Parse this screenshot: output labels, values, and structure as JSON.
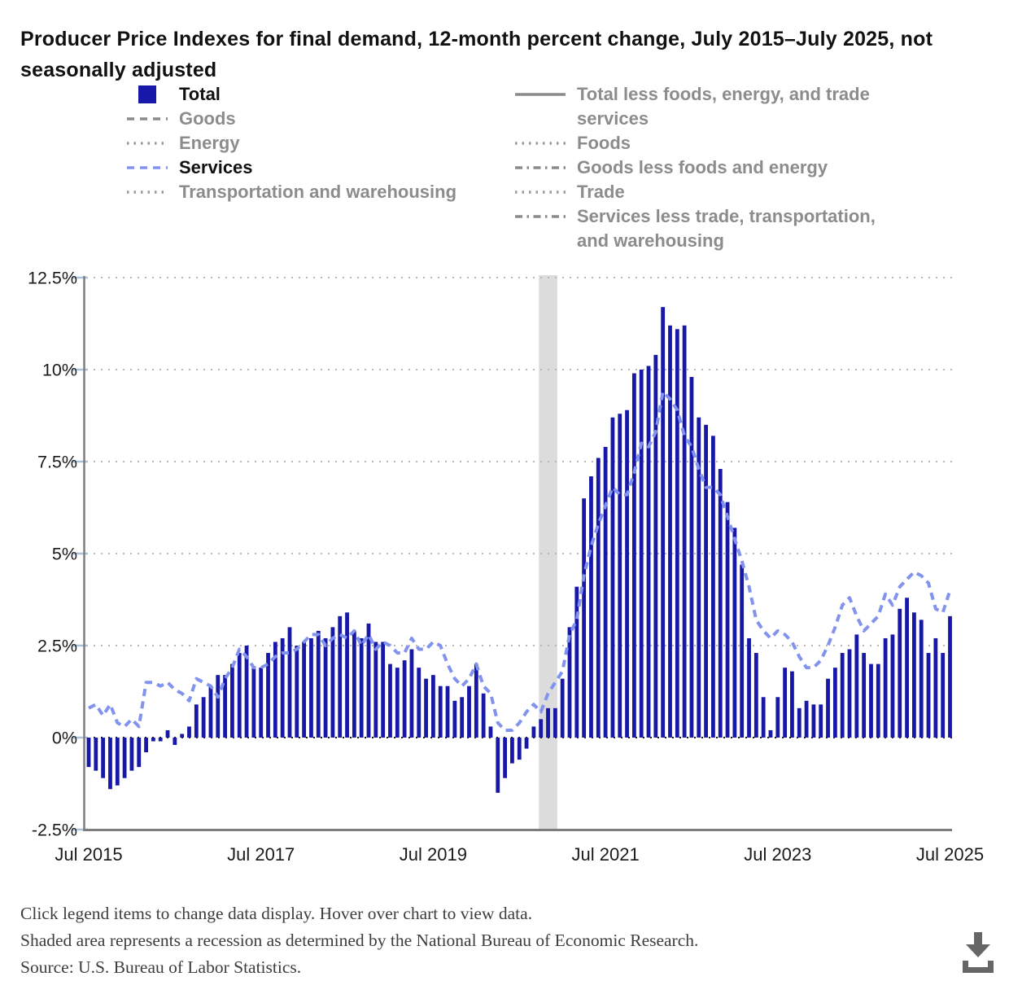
{
  "title": "Producer Price Indexes for final demand, 12-month percent change, July 2015–July 2025, not seasonally adjusted",
  "legend": {
    "columns": [
      [
        {
          "label": "Total",
          "marker": "square",
          "color": "#1717a8",
          "active": true
        },
        {
          "label": "Goods",
          "marker": "dashed",
          "color": "#8a8a8a",
          "active": false
        },
        {
          "label": "Energy",
          "marker": "dotted",
          "color": "#9a9a9a",
          "active": false
        },
        {
          "label": "Services",
          "marker": "dashed",
          "color": "#8293ee",
          "active": true
        },
        {
          "label": "Transportation and warehousing",
          "marker": "dotted",
          "color": "#9a9a9a",
          "active": false
        }
      ],
      [
        {
          "label": "Total less foods, energy, and trade services",
          "marker": "solid",
          "color": "#8a8a8a",
          "active": false
        },
        {
          "label": "Foods",
          "marker": "dotted",
          "color": "#9a9a9a",
          "active": false
        },
        {
          "label": "Goods less foods and energy",
          "marker": "dashdot",
          "color": "#8a8a8a",
          "active": false
        },
        {
          "label": "Trade",
          "marker": "dotted",
          "color": "#9a9a9a",
          "active": false
        },
        {
          "label": "Services less trade, transportation, and warehousing",
          "marker": "dashdot",
          "color": "#8a8a8a",
          "active": false
        }
      ]
    ]
  },
  "chart_data": {
    "type": "bar",
    "title": "Producer Price Indexes for final demand, 12-month percent change",
    "x_unit": "month",
    "x_start": "Jul 2015",
    "x_end": "Jul 2025",
    "n_points": 121,
    "grid": "dotted-horizontal",
    "ylim": [
      -2.5,
      12.5
    ],
    "y_ticks": [
      {
        "label": "12.5%",
        "value": 12.5
      },
      {
        "label": "10%",
        "value": 10
      },
      {
        "label": "7.5%",
        "value": 7.5
      },
      {
        "label": "5%",
        "value": 5
      },
      {
        "label": "2.5%",
        "value": 2.5
      },
      {
        "label": "0%",
        "value": 0
      },
      {
        "label": "-2.5%",
        "value": -2.5
      }
    ],
    "x_ticks": [
      {
        "label": "Jul 2015",
        "index": 0
      },
      {
        "label": "Jul 2017",
        "index": 24
      },
      {
        "label": "Jul 2019",
        "index": 48
      },
      {
        "label": "Jul 2021",
        "index": 72
      },
      {
        "label": "Jul 2023",
        "index": 96
      },
      {
        "label": "Jul 2025",
        "index": 120
      }
    ],
    "recession_band": {
      "from_index": 63,
      "to_index": 65,
      "color": "#dcdcdc"
    },
    "series": [
      {
        "name": "Total",
        "type": "bar",
        "color": "#1717a8",
        "values": [
          -0.8,
          -0.9,
          -1.1,
          -1.4,
          -1.3,
          -1.1,
          -0.9,
          -0.8,
          -0.4,
          -0.1,
          -0.1,
          0.2,
          -0.2,
          0.1,
          0.3,
          0.9,
          1.1,
          1.4,
          1.7,
          1.7,
          2.0,
          2.3,
          2.5,
          1.9,
          1.9,
          2.3,
          2.6,
          2.7,
          3.0,
          2.5,
          2.6,
          2.7,
          2.9,
          2.7,
          3.0,
          3.3,
          3.4,
          2.9,
          2.7,
          3.1,
          2.6,
          2.6,
          2.0,
          1.9,
          2.1,
          2.4,
          1.9,
          1.6,
          1.7,
          1.4,
          1.4,
          1.0,
          1.1,
          1.4,
          2.0,
          1.2,
          0.3,
          -1.5,
          -1.1,
          -0.7,
          -0.6,
          -0.3,
          0.3,
          0.5,
          0.8,
          0.8,
          1.6,
          3.0,
          4.1,
          6.5,
          7.1,
          7.6,
          7.9,
          8.7,
          8.8,
          8.9,
          9.9,
          10.0,
          10.1,
          10.4,
          11.7,
          11.2,
          11.1,
          11.2,
          9.8,
          8.7,
          8.5,
          8.2,
          7.3,
          6.4,
          5.7,
          4.7,
          2.7,
          2.3,
          1.1,
          0.2,
          1.1,
          1.9,
          1.8,
          0.8,
          1.0,
          0.9,
          0.9,
          1.6,
          1.9,
          2.3,
          2.4,
          2.8,
          2.3,
          2.0,
          2.0,
          2.7,
          2.8,
          3.5,
          3.8,
          3.4,
          3.2,
          2.3,
          2.7,
          2.3,
          3.3
        ]
      },
      {
        "name": "Services",
        "type": "line",
        "line_style": "dashed",
        "color": "#8293ee",
        "values": [
          0.8,
          0.9,
          0.6,
          0.9,
          0.4,
          0.3,
          0.5,
          0.3,
          1.5,
          1.5,
          1.4,
          1.5,
          1.3,
          1.2,
          1.0,
          1.6,
          1.5,
          1.4,
          1.1,
          1.6,
          1.9,
          2.4,
          2.2,
          1.9,
          1.9,
          2.0,
          2.2,
          2.3,
          2.3,
          2.4,
          2.6,
          2.8,
          2.8,
          2.5,
          2.7,
          2.8,
          2.7,
          2.9,
          2.5,
          2.8,
          2.4,
          2.6,
          2.5,
          2.3,
          2.3,
          2.7,
          2.4,
          2.4,
          2.6,
          2.5,
          2.0,
          1.6,
          1.4,
          1.6,
          2.0,
          1.4,
          1.2,
          0.4,
          0.2,
          0.2,
          0.4,
          0.7,
          0.9,
          0.7,
          1.2,
          1.5,
          1.8,
          2.8,
          3.2,
          4.4,
          5.2,
          5.8,
          6.3,
          6.8,
          6.6,
          6.6,
          7.2,
          8.0,
          7.9,
          8.3,
          9.4,
          9.2,
          8.9,
          8.2,
          7.9,
          7.3,
          6.8,
          6.8,
          6.6,
          6.0,
          5.4,
          4.8,
          4.1,
          3.2,
          2.9,
          2.7,
          2.9,
          2.8,
          2.6,
          2.2,
          1.9,
          1.9,
          2.1,
          2.5,
          3.0,
          3.6,
          3.8,
          3.3,
          2.9,
          3.1,
          3.3,
          3.9,
          3.6,
          4.1,
          4.3,
          4.5,
          4.4,
          4.2,
          3.5,
          3.4,
          4.0
        ]
      }
    ],
    "axis_color": "#7d7d7d",
    "gridline_color": "#b8b8b8",
    "zero_line_color": "#1a1a1a",
    "tick_mark_color": "#a9c2da"
  },
  "footer": {
    "lines": [
      "Click legend items to change data display. Hover over chart to view data.",
      "Shaded area represents a recession as determined by the National Bureau of Economic Research.",
      "Source: U.S. Bureau of Labor Statistics."
    ]
  }
}
